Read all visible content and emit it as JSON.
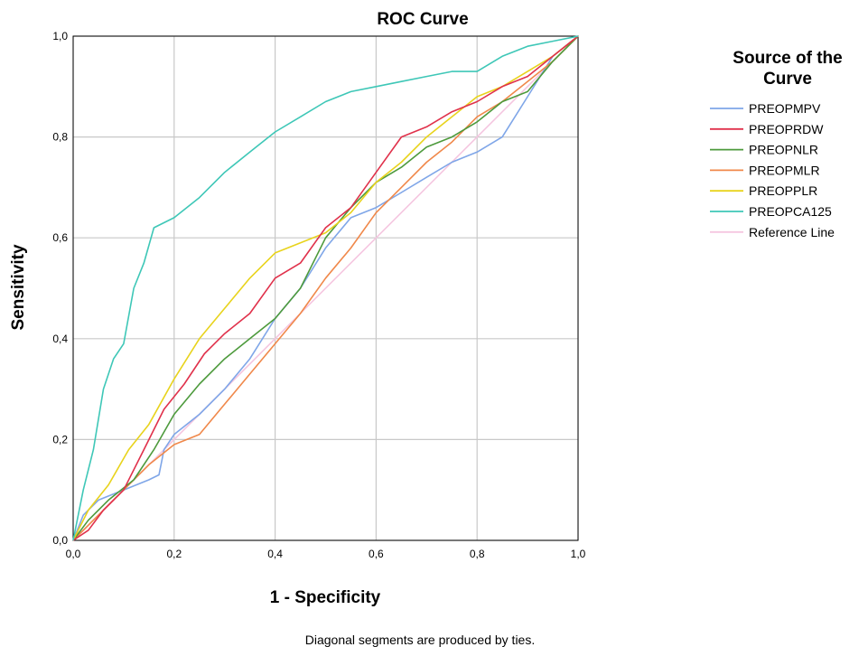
{
  "chart_data": {
    "type": "line",
    "title": "ROC Curve",
    "xlabel": "1 - Specificity",
    "ylabel": "Sensitivity",
    "xlim": [
      0,
      1
    ],
    "ylim": [
      0,
      1
    ],
    "grid": true,
    "x_ticks": [
      "0,0",
      "0,2",
      "0,4",
      "0,6",
      "0,8",
      "1,0"
    ],
    "y_ticks": [
      "0,0",
      "0,2",
      "0,4",
      "0,6",
      "0,8",
      "1,0"
    ],
    "legend": {
      "title": "Source of the Curve",
      "position": "right"
    },
    "footnote": "Diagonal segments are produced by ties.",
    "series": [
      {
        "name": "PREOPMPV",
        "color": "#7fa6e8",
        "points": [
          [
            0,
            0
          ],
          [
            0.02,
            0.05
          ],
          [
            0.05,
            0.08
          ],
          [
            0.1,
            0.1
          ],
          [
            0.15,
            0.12
          ],
          [
            0.17,
            0.13
          ],
          [
            0.18,
            0.18
          ],
          [
            0.2,
            0.21
          ],
          [
            0.25,
            0.25
          ],
          [
            0.3,
            0.3
          ],
          [
            0.35,
            0.36
          ],
          [
            0.4,
            0.44
          ],
          [
            0.45,
            0.5
          ],
          [
            0.5,
            0.58
          ],
          [
            0.55,
            0.64
          ],
          [
            0.6,
            0.66
          ],
          [
            0.65,
            0.69
          ],
          [
            0.7,
            0.72
          ],
          [
            0.75,
            0.75
          ],
          [
            0.8,
            0.77
          ],
          [
            0.85,
            0.8
          ],
          [
            0.9,
            0.88
          ],
          [
            0.95,
            0.96
          ],
          [
            1,
            1
          ]
        ]
      },
      {
        "name": "PREOPRDW",
        "color": "#e0314b",
        "points": [
          [
            0,
            0
          ],
          [
            0.03,
            0.02
          ],
          [
            0.06,
            0.06
          ],
          [
            0.1,
            0.1
          ],
          [
            0.14,
            0.18
          ],
          [
            0.18,
            0.26
          ],
          [
            0.22,
            0.31
          ],
          [
            0.26,
            0.37
          ],
          [
            0.3,
            0.41
          ],
          [
            0.35,
            0.45
          ],
          [
            0.4,
            0.52
          ],
          [
            0.45,
            0.55
          ],
          [
            0.5,
            0.62
          ],
          [
            0.55,
            0.66
          ],
          [
            0.6,
            0.73
          ],
          [
            0.65,
            0.8
          ],
          [
            0.7,
            0.82
          ],
          [
            0.75,
            0.85
          ],
          [
            0.8,
            0.87
          ],
          [
            0.85,
            0.9
          ],
          [
            0.9,
            0.92
          ],
          [
            0.95,
            0.96
          ],
          [
            1,
            1
          ]
        ]
      },
      {
        "name": "PREOPNLR",
        "color": "#4d9a3c",
        "points": [
          [
            0,
            0
          ],
          [
            0.03,
            0.04
          ],
          [
            0.07,
            0.08
          ],
          [
            0.12,
            0.12
          ],
          [
            0.16,
            0.18
          ],
          [
            0.2,
            0.25
          ],
          [
            0.25,
            0.31
          ],
          [
            0.3,
            0.36
          ],
          [
            0.35,
            0.4
          ],
          [
            0.4,
            0.44
          ],
          [
            0.45,
            0.5
          ],
          [
            0.5,
            0.6
          ],
          [
            0.55,
            0.66
          ],
          [
            0.6,
            0.71
          ],
          [
            0.65,
            0.74
          ],
          [
            0.7,
            0.78
          ],
          [
            0.75,
            0.8
          ],
          [
            0.8,
            0.83
          ],
          [
            0.85,
            0.87
          ],
          [
            0.9,
            0.89
          ],
          [
            0.95,
            0.95
          ],
          [
            1,
            1
          ]
        ]
      },
      {
        "name": "PREOPMLR",
        "color": "#f0884a",
        "points": [
          [
            0,
            0
          ],
          [
            0.05,
            0.05
          ],
          [
            0.1,
            0.1
          ],
          [
            0.15,
            0.15
          ],
          [
            0.2,
            0.19
          ],
          [
            0.25,
            0.21
          ],
          [
            0.3,
            0.27
          ],
          [
            0.35,
            0.33
          ],
          [
            0.4,
            0.39
          ],
          [
            0.45,
            0.45
          ],
          [
            0.5,
            0.52
          ],
          [
            0.55,
            0.58
          ],
          [
            0.6,
            0.65
          ],
          [
            0.65,
            0.7
          ],
          [
            0.7,
            0.75
          ],
          [
            0.75,
            0.79
          ],
          [
            0.8,
            0.84
          ],
          [
            0.85,
            0.87
          ],
          [
            0.9,
            0.91
          ],
          [
            0.95,
            0.95
          ],
          [
            1,
            1
          ]
        ]
      },
      {
        "name": "PREOPPLR",
        "color": "#e8d31c",
        "points": [
          [
            0,
            0
          ],
          [
            0.03,
            0.06
          ],
          [
            0.07,
            0.11
          ],
          [
            0.11,
            0.18
          ],
          [
            0.15,
            0.23
          ],
          [
            0.2,
            0.32
          ],
          [
            0.25,
            0.4
          ],
          [
            0.3,
            0.46
          ],
          [
            0.35,
            0.52
          ],
          [
            0.4,
            0.57
          ],
          [
            0.45,
            0.59
          ],
          [
            0.5,
            0.61
          ],
          [
            0.55,
            0.65
          ],
          [
            0.6,
            0.71
          ],
          [
            0.65,
            0.75
          ],
          [
            0.7,
            0.8
          ],
          [
            0.75,
            0.84
          ],
          [
            0.8,
            0.88
          ],
          [
            0.85,
            0.9
          ],
          [
            0.9,
            0.93
          ],
          [
            0.95,
            0.96
          ],
          [
            1,
            1
          ]
        ]
      },
      {
        "name": "PREOPCA125",
        "color": "#3ec7b7",
        "points": [
          [
            0,
            0
          ],
          [
            0.02,
            0.1
          ],
          [
            0.04,
            0.18
          ],
          [
            0.06,
            0.3
          ],
          [
            0.08,
            0.36
          ],
          [
            0.1,
            0.39
          ],
          [
            0.12,
            0.5
          ],
          [
            0.14,
            0.55
          ],
          [
            0.16,
            0.62
          ],
          [
            0.2,
            0.64
          ],
          [
            0.25,
            0.68
          ],
          [
            0.3,
            0.73
          ],
          [
            0.35,
            0.77
          ],
          [
            0.4,
            0.81
          ],
          [
            0.45,
            0.84
          ],
          [
            0.5,
            0.87
          ],
          [
            0.55,
            0.89
          ],
          [
            0.6,
            0.9
          ],
          [
            0.65,
            0.91
          ],
          [
            0.7,
            0.92
          ],
          [
            0.75,
            0.93
          ],
          [
            0.8,
            0.93
          ],
          [
            0.85,
            0.96
          ],
          [
            0.9,
            0.98
          ],
          [
            0.95,
            0.99
          ],
          [
            1,
            1
          ]
        ]
      },
      {
        "name": "Reference Line",
        "color": "#f5c6e0",
        "points": [
          [
            0,
            0
          ],
          [
            1,
            1
          ]
        ]
      }
    ]
  }
}
